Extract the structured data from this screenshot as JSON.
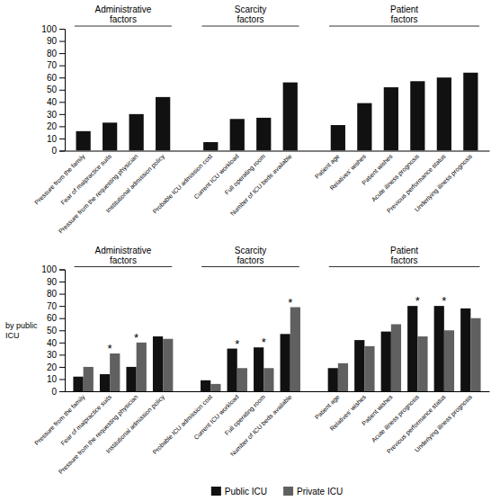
{
  "chart_data": [
    {
      "type": "bar",
      "categories": [
        "Pressure from the family",
        "Fear of malpractice suits",
        "Pressure from the requesting physician",
        "Institutional admission policy",
        "Probable ICU admission cost",
        "Current ICU workload",
        "Full operating room",
        "Number of ICU beds available",
        "Patient age",
        "Relatives' wishes",
        "Patient wishes",
        "Acute illness prognosis",
        "Previous performance status",
        "Underlying illness prognosis"
      ],
      "values": [
        16,
        23,
        30,
        44,
        7,
        26,
        27,
        56,
        21,
        39,
        52,
        57,
        60,
        64
      ],
      "color": "#111111",
      "groups": [
        {
          "label": "Administrative\nfactors",
          "start": "Pressure from the family",
          "end": "Institutional admission policy"
        },
        {
          "label": "Scarcity\nfactors",
          "start": "Probable ICU admission cost",
          "end": "Number of ICU beds available"
        },
        {
          "label": "Patient\nfactors",
          "start": "Patient age",
          "end": "Underlying illness prognosis"
        }
      ],
      "ylim": [
        0,
        100
      ],
      "yticks": [
        0,
        10,
        20,
        30,
        40,
        50,
        60,
        70,
        80,
        90,
        100
      ],
      "grid": false
    },
    {
      "type": "bar",
      "ylabel": "by public\nICU",
      "categories": [
        "Pressure from the family",
        "Fear of malpractice suits",
        "Pressure from the requesting physician",
        "Institutional admission policy",
        "Probable ICU admission cost",
        "Current ICU workload",
        "Full operating room",
        "Number of ICU beds available",
        "Patient age",
        "Relatives' wishes",
        "Patient wishes",
        "Acute illness prognosis",
        "Previous performance status",
        "Underlying illness prognosis"
      ],
      "series": [
        {
          "name": "Public ICU",
          "color": "#111111",
          "values": [
            12,
            14,
            20,
            45,
            9,
            35,
            36,
            47,
            19,
            42,
            49,
            70,
            70,
            68
          ]
        },
        {
          "name": "Private ICU",
          "color": "#606060",
          "values": [
            20,
            31,
            40,
            43,
            6,
            19,
            19,
            69,
            23,
            37,
            55,
            45,
            50,
            60
          ]
        }
      ],
      "groups": [
        {
          "label": "Administrative\nfactors",
          "start": "Pressure from the family",
          "end": "Institutional admission policy"
        },
        {
          "label": "Scarcity\nfactors",
          "start": "Probable ICU admission cost",
          "end": "Number of ICU beds available"
        },
        {
          "label": "Patient\nfactors",
          "start": "Patient age",
          "end": "Underlying illness prognosis"
        }
      ],
      "annotations": [
        {
          "text": "*",
          "category": "Fear of malpractice suits"
        },
        {
          "text": "*",
          "category": "Pressure from the requesting physician"
        },
        {
          "text": "*",
          "category": "Current ICU workload"
        },
        {
          "text": "*",
          "category": "Full operating room"
        },
        {
          "text": "*",
          "category": "Number of ICU beds available"
        },
        {
          "text": "*",
          "category": "Acute illness prognosis"
        },
        {
          "text": "*",
          "category": "Previous performance status"
        }
      ],
      "ylim": [
        0,
        100
      ],
      "yticks": [
        0,
        10,
        20,
        30,
        40,
        50,
        60,
        70,
        80,
        90,
        100
      ],
      "grid": false,
      "legend": "bottom"
    }
  ]
}
